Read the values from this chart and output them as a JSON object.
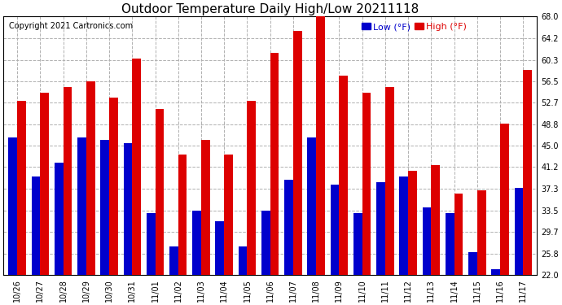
{
  "title": "Outdoor Temperature Daily High/Low 20211118",
  "copyright": "Copyright 2021 Cartronics.com",
  "dates": [
    "10/26",
    "10/27",
    "10/28",
    "10/29",
    "10/30",
    "10/31",
    "11/01",
    "11/02",
    "11/03",
    "11/04",
    "11/05",
    "11/06",
    "11/07",
    "11/08",
    "11/09",
    "11/10",
    "11/11",
    "11/12",
    "11/13",
    "11/14",
    "11/15",
    "11/16",
    "11/17"
  ],
  "highs": [
    53.0,
    54.5,
    55.5,
    56.5,
    53.5,
    60.5,
    51.5,
    43.5,
    46.0,
    43.5,
    53.0,
    61.5,
    65.5,
    68.0,
    57.5,
    54.5,
    55.5,
    40.5,
    41.5,
    36.5,
    37.0,
    49.0,
    58.5
  ],
  "lows": [
    46.5,
    39.5,
    42.0,
    46.5,
    46.0,
    45.5,
    33.0,
    27.0,
    33.5,
    31.5,
    27.0,
    33.5,
    39.0,
    46.5,
    38.0,
    33.0,
    38.5,
    39.5,
    34.0,
    33.0,
    26.0,
    23.0,
    37.5
  ],
  "bar_color_high": "#dd0000",
  "bar_color_low": "#0000cc",
  "background_color": "#ffffff",
  "grid_color": "#b0b0b0",
  "ylim_min": 22.0,
  "ylim_max": 68.0,
  "yticks": [
    22.0,
    25.8,
    29.7,
    33.5,
    37.3,
    41.2,
    45.0,
    48.8,
    52.7,
    56.5,
    60.3,
    64.2,
    68.0
  ],
  "title_fontsize": 11,
  "copyright_fontsize": 7,
  "legend_fontsize": 8,
  "tick_fontsize": 7,
  "bar_width": 0.38
}
